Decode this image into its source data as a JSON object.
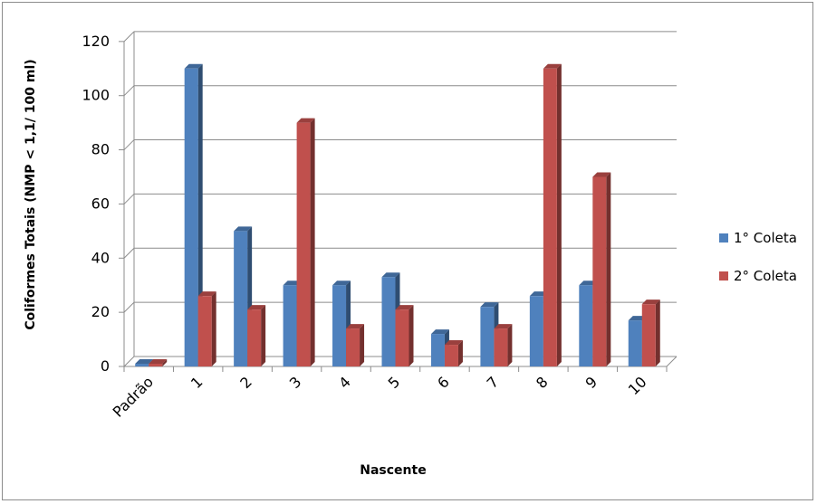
{
  "chart_data": {
    "type": "bar",
    "xlabel": "Nascente",
    "ylabel": "Coliformes Totais (NMP < 1,1/ 100 ml)",
    "categories": [
      "Padrão",
      "1",
      "2",
      "3",
      "4",
      "5",
      "6",
      "7",
      "8",
      "9",
      "10"
    ],
    "series": [
      {
        "name": "1° Coleta",
        "values": [
          1,
          110,
          50,
          30,
          30,
          33,
          12,
          22,
          26,
          30,
          17
        ],
        "color": "#4f81bd"
      },
      {
        "name": "2° Coleta",
        "values": [
          1,
          26,
          21,
          90,
          14,
          21,
          8,
          14,
          110,
          70,
          23
        ],
        "color": "#c0504d"
      }
    ],
    "ylim": [
      0,
      120
    ],
    "yticks": [
      0,
      20,
      40,
      60,
      80,
      100,
      120
    ],
    "grid": true,
    "legend": "right",
    "style": "3d-clustered-column"
  }
}
